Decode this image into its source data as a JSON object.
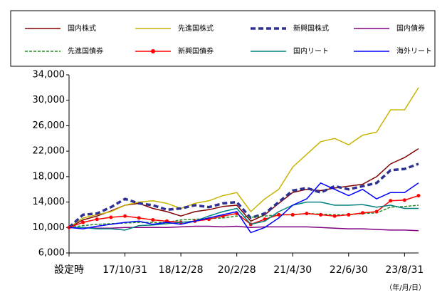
{
  "chart_data": {
    "type": "line",
    "categories": [
      "設定時",
      null,
      null,
      null,
      "17/10/31",
      null,
      null,
      null,
      "18/12/28",
      null,
      null,
      null,
      "20/2/28",
      null,
      null,
      null,
      "21/4/30",
      null,
      null,
      null,
      "22/6/30",
      null,
      null,
      null,
      "23/8/31",
      null
    ],
    "ylim": [
      6000,
      34000
    ],
    "yticks": [
      {
        "value": 6000,
        "label": "6,000"
      },
      {
        "value": 10000,
        "label": "10,000"
      },
      {
        "value": 14000,
        "label": "14,000"
      },
      {
        "value": 18000,
        "label": "18,000"
      },
      {
        "value": 22000,
        "label": "22,000"
      },
      {
        "value": 26000,
        "label": "26,000"
      },
      {
        "value": 30000,
        "label": "30,000"
      },
      {
        "value": 34000,
        "label": "34,000"
      }
    ],
    "grid": false,
    "annotation": "（年/月/日）",
    "series": [
      {
        "name": "国内株式",
        "color": "#800000",
        "width": 1.5,
        "dashed": false,
        "marker": false,
        "values": [
          10000,
          11200,
          11800,
          12600,
          13500,
          13800,
          13000,
          12500,
          11800,
          12500,
          12800,
          13300,
          13500,
          11000,
          12000,
          13800,
          15500,
          16000,
          15800,
          16200,
          16500,
          16800,
          18000,
          20000,
          21000,
          22400
        ]
      },
      {
        "name": "先進国株式",
        "color": "#c8b400",
        "width": 1.5,
        "dashed": false,
        "marker": false,
        "values": [
          10000,
          11500,
          12000,
          12500,
          13500,
          14000,
          14200,
          13800,
          13000,
          13800,
          14200,
          15000,
          15500,
          12500,
          14500,
          16000,
          19500,
          21500,
          23500,
          24000,
          23000,
          24500,
          25000,
          28500,
          28500,
          32000
        ]
      },
      {
        "name": "新興国株式",
        "color": "#2e3192",
        "width": 3.5,
        "dashed": true,
        "marker": false,
        "values": [
          10000,
          12000,
          12200,
          13200,
          14500,
          13800,
          13500,
          12800,
          13000,
          13500,
          13200,
          13800,
          14000,
          11500,
          12200,
          14000,
          15800,
          16200,
          15500,
          16500,
          16000,
          16500,
          17000,
          19000,
          19200,
          20000
        ]
      },
      {
        "name": "国内債券",
        "color": "#800080",
        "width": 1.5,
        "dashed": false,
        "marker": false,
        "values": [
          10000,
          10000,
          9900,
          9900,
          10000,
          10000,
          10000,
          10000,
          10100,
          10200,
          10200,
          10100,
          10200,
          10000,
          10100,
          10100,
          10100,
          10100,
          10000,
          9900,
          9800,
          9800,
          9700,
          9600,
          9600,
          9500
        ]
      },
      {
        "name": "先進国債券",
        "color": "#228b22",
        "width": 1.5,
        "dashed": true,
        "marker": false,
        "values": [
          10000,
          10300,
          10500,
          10600,
          10700,
          10800,
          10800,
          10800,
          11200,
          11300,
          11400,
          11500,
          11800,
          11600,
          11800,
          12000,
          12000,
          12200,
          12100,
          12000,
          12000,
          12200,
          12300,
          13200,
          13300,
          13500
        ]
      },
      {
        "name": "新興国債券",
        "color": "#ff0000",
        "width": 1.5,
        "dashed": false,
        "marker": true,
        "values": [
          10000,
          10800,
          11300,
          11600,
          11800,
          11500,
          11200,
          11000,
          10800,
          11000,
          11300,
          11800,
          12200,
          10500,
          11300,
          12000,
          12000,
          12200,
          12000,
          11800,
          12000,
          12300,
          12500,
          14200,
          14300,
          15000
        ]
      },
      {
        "name": "国内リート",
        "color": "#008080",
        "width": 1.5,
        "dashed": false,
        "marker": false,
        "values": [
          10000,
          10000,
          9800,
          9800,
          9600,
          10300,
          10400,
          10600,
          10800,
          11000,
          11800,
          12500,
          13000,
          10500,
          11000,
          12500,
          13500,
          14000,
          14000,
          13500,
          13500,
          13600,
          13200,
          13500,
          13000,
          13000
        ]
      },
      {
        "name": "海外リート",
        "color": "#0000ff",
        "width": 1.5,
        "dashed": false,
        "marker": false,
        "values": [
          10000,
          9800,
          10200,
          10500,
          10800,
          11000,
          10500,
          10800,
          10500,
          11000,
          11500,
          12000,
          12500,
          9200,
          10000,
          11500,
          13500,
          14500,
          17000,
          16000,
          15000,
          16000,
          14500,
          15500,
          15500,
          17000
        ]
      }
    ]
  }
}
